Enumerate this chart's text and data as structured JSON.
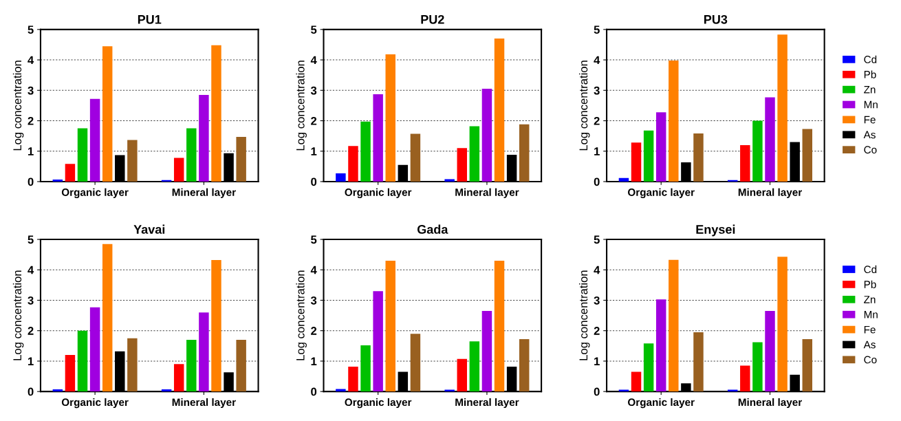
{
  "chart_data": [
    {
      "type": "bar",
      "title": "PU1",
      "ylabel": "Log concentration",
      "categories": [
        "Organic layer",
        "Mineral layer"
      ],
      "ylim": [
        0,
        5
      ],
      "yticks": [
        0,
        1,
        2,
        3,
        4,
        5
      ],
      "grid": "y",
      "legend": false,
      "series": [
        {
          "color": "#0000ff",
          "values": [
            0.07,
            0.05
          ]
        },
        {
          "color": "#ff0000",
          "values": [
            0.58,
            0.78
          ]
        },
        {
          "color": "#00c000",
          "values": [
            1.75,
            1.75
          ]
        },
        {
          "color": "#a000e0",
          "values": [
            2.72,
            2.85
          ]
        },
        {
          "color": "#ff8000",
          "values": [
            4.45,
            4.48
          ]
        },
        {
          "color": "#000000",
          "values": [
            0.87,
            0.93
          ]
        },
        {
          "color": "#996020",
          "values": [
            1.37,
            1.47
          ]
        }
      ]
    },
    {
      "type": "bar",
      "title": "PU2",
      "ylabel": "Log concentration",
      "categories": [
        "Organic layer",
        "Mineral layer"
      ],
      "ylim": [
        0,
        5
      ],
      "yticks": [
        0,
        1,
        2,
        3,
        4,
        5
      ],
      "grid": "y",
      "legend": false,
      "series": [
        {
          "color": "#0000ff",
          "values": [
            0.27,
            0.08
          ]
        },
        {
          "color": "#ff0000",
          "values": [
            1.17,
            1.1
          ]
        },
        {
          "color": "#00c000",
          "values": [
            1.97,
            1.82
          ]
        },
        {
          "color": "#a000e0",
          "values": [
            2.87,
            3.05
          ]
        },
        {
          "color": "#ff8000",
          "values": [
            4.18,
            4.7
          ]
        },
        {
          "color": "#000000",
          "values": [
            0.55,
            0.88
          ]
        },
        {
          "color": "#996020",
          "values": [
            1.57,
            1.88
          ]
        }
      ]
    },
    {
      "type": "bar",
      "title": "PU3",
      "ylabel": "Log concentration",
      "categories": [
        "Organic layer",
        "Mineral layer"
      ],
      "ylim": [
        0,
        5
      ],
      "yticks": [
        0,
        1,
        2,
        3,
        4,
        5
      ],
      "grid": "y",
      "legend": "right",
      "series": [
        {
          "name": "Cd",
          "color": "#0000ff",
          "values": [
            0.12,
            0.05
          ]
        },
        {
          "name": "Pb",
          "color": "#ff0000",
          "values": [
            1.28,
            1.2
          ]
        },
        {
          "name": "Zn",
          "color": "#00c000",
          "values": [
            1.68,
            2.0
          ]
        },
        {
          "name": "Mn",
          "color": "#a000e0",
          "values": [
            2.28,
            2.77
          ]
        },
        {
          "name": "Fe",
          "color": "#ff8000",
          "values": [
            3.98,
            4.83
          ]
        },
        {
          "name": "As",
          "color": "#000000",
          "values": [
            0.63,
            1.3
          ]
        },
        {
          "name": "Co",
          "color": "#996020",
          "values": [
            1.58,
            1.73
          ]
        }
      ]
    },
    {
      "type": "bar",
      "title": "Yavai",
      "ylabel": "Log concentration",
      "categories": [
        "Organic layer",
        "Mineral layer"
      ],
      "ylim": [
        0,
        5
      ],
      "yticks": [
        0,
        1,
        2,
        3,
        4,
        5
      ],
      "grid": "y",
      "legend": false,
      "series": [
        {
          "color": "#0000ff",
          "values": [
            0.07,
            0.07
          ]
        },
        {
          "color": "#ff0000",
          "values": [
            1.2,
            0.9
          ]
        },
        {
          "color": "#00c000",
          "values": [
            2.0,
            1.7
          ]
        },
        {
          "color": "#a000e0",
          "values": [
            2.77,
            2.6
          ]
        },
        {
          "color": "#ff8000",
          "values": [
            4.85,
            4.32
          ]
        },
        {
          "color": "#000000",
          "values": [
            1.32,
            0.63
          ]
        },
        {
          "color": "#996020",
          "values": [
            1.75,
            1.7
          ]
        }
      ]
    },
    {
      "type": "bar",
      "title": "Gada",
      "ylabel": "Log concentration",
      "categories": [
        "Organic layer",
        "Mineral layer"
      ],
      "ylim": [
        0,
        5
      ],
      "yticks": [
        0,
        1,
        2,
        3,
        4,
        5
      ],
      "grid": "y",
      "legend": false,
      "series": [
        {
          "color": "#0000ff",
          "values": [
            0.08,
            0.06
          ]
        },
        {
          "color": "#ff0000",
          "values": [
            0.82,
            1.07
          ]
        },
        {
          "color": "#00c000",
          "values": [
            1.52,
            1.65
          ]
        },
        {
          "color": "#a000e0",
          "values": [
            3.3,
            2.65
          ]
        },
        {
          "color": "#ff8000",
          "values": [
            4.3,
            4.3
          ]
        },
        {
          "color": "#000000",
          "values": [
            0.65,
            0.82
          ]
        },
        {
          "color": "#996020",
          "values": [
            1.9,
            1.72
          ]
        }
      ]
    },
    {
      "type": "bar",
      "title": "Enysei",
      "ylabel": "Log concentration",
      "categories": [
        "Organic layer",
        "Mineral layer"
      ],
      "ylim": [
        0,
        5
      ],
      "yticks": [
        0,
        1,
        2,
        3,
        4,
        5
      ],
      "grid": "y",
      "legend": "right",
      "series": [
        {
          "name": "Cd",
          "color": "#0000ff",
          "values": [
            0.06,
            0.06
          ]
        },
        {
          "name": "Pb",
          "color": "#ff0000",
          "values": [
            0.65,
            0.85
          ]
        },
        {
          "name": "Zn",
          "color": "#00c000",
          "values": [
            1.58,
            1.62
          ]
        },
        {
          "name": "Mn",
          "color": "#a000e0",
          "values": [
            3.03,
            2.65
          ]
        },
        {
          "name": "Fe",
          "color": "#ff8000",
          "values": [
            4.33,
            4.43
          ]
        },
        {
          "name": "As",
          "color": "#000000",
          "values": [
            0.27,
            0.55
          ]
        },
        {
          "name": "Co",
          "color": "#996020",
          "values": [
            1.95,
            1.72
          ]
        }
      ]
    }
  ]
}
